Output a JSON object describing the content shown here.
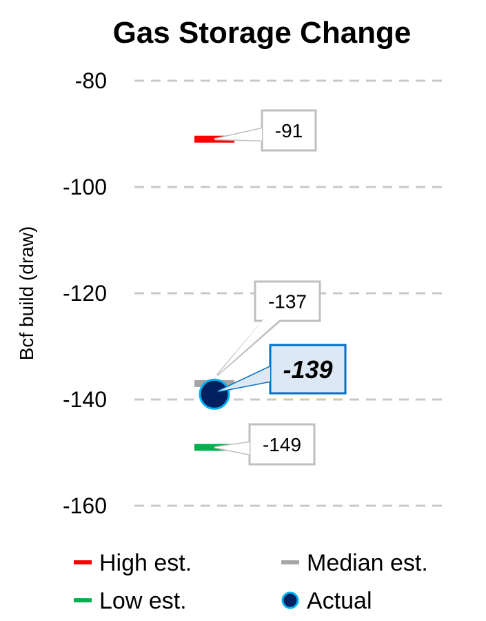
{
  "chart_data": {
    "type": "scatter",
    "title": "Gas Storage Change",
    "ylabel": "Bcf build (draw)",
    "xlabel": "",
    "ylim": [
      -160,
      -80
    ],
    "yticks": [
      -80,
      -100,
      -120,
      -140,
      -160
    ],
    "grid": true,
    "legend_position": "bottom",
    "series": [
      {
        "name": "High est.",
        "value": -91,
        "label": "-91",
        "marker": "dash",
        "color": "#ff0000"
      },
      {
        "name": "Median est.",
        "value": -137,
        "label": "-137",
        "marker": "dash",
        "color": "#a6a6a6"
      },
      {
        "name": "Low est.",
        "value": -149,
        "label": "-149",
        "marker": "dash",
        "color": "#00b050"
      },
      {
        "name": "Actual",
        "value": -139,
        "label": "-139",
        "marker": "circle",
        "color": "#002060",
        "edge_color": "#00b0f0"
      }
    ]
  }
}
